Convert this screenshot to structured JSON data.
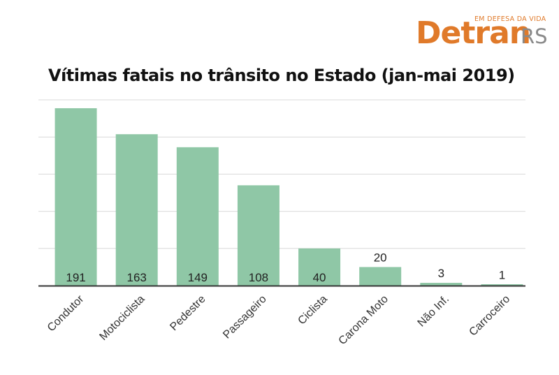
{
  "logo": {
    "tagline": "EM DEFESA DA VIDA",
    "word": "Detran",
    "suffix": "RS",
    "colors": {
      "primary": "#e07a2a",
      "secondary": "#8a8a8a"
    }
  },
  "chart_data": {
    "type": "bar",
    "title": "Vítimas fatais no trânsito no Estado (jan-mai 2019)",
    "categories": [
      "Condutor",
      "Motociclista",
      "Pedestre",
      "Passageiro",
      "Ciclista",
      "Carona Moto",
      "Não Inf.",
      "Carroceiro"
    ],
    "values": [
      191,
      163,
      149,
      108,
      40,
      20,
      3,
      1
    ],
    "ylim": [
      0,
      200
    ],
    "grid": true,
    "legend": "none",
    "bar_color": "#8fc7a6"
  }
}
